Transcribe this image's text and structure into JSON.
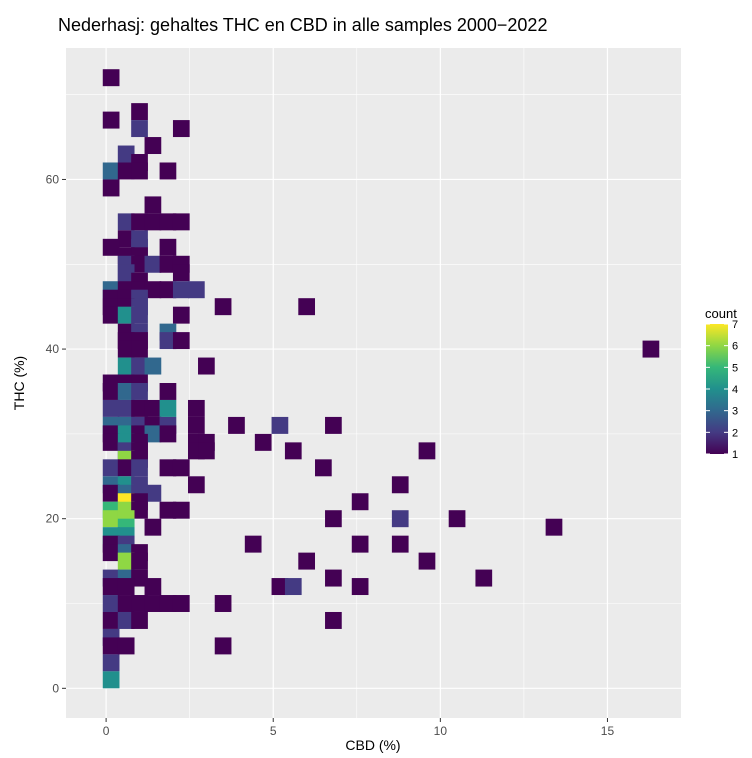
{
  "chart_data": {
    "type": "heatmap",
    "title": "Nederhasj: gehaltes THC en CBD in alle samples 2000−2022",
    "xlabel": "CBD (%)",
    "ylabel": "THC (%)",
    "xlim": [
      -1.2,
      17.2
    ],
    "ylim": [
      -3.5,
      75.5
    ],
    "x_ticks": [
      0,
      5,
      10,
      15
    ],
    "x_tick_labels": [
      "0",
      "5",
      "10",
      "15"
    ],
    "y_ticks": [
      0,
      20,
      40,
      60
    ],
    "y_tick_labels": [
      "0",
      "20",
      "40",
      "60"
    ],
    "bin_width": {
      "x": 0.5,
      "y": 2
    },
    "grid": true,
    "legend": {
      "title": "count",
      "position": "right",
      "min": 1,
      "max": 7,
      "labels": [
        "7",
        "6",
        "5",
        "4",
        "3",
        "2",
        "1"
      ],
      "colors": [
        "#440154",
        "#443a83",
        "#31688e",
        "#21908d",
        "#35b779",
        "#8fd744",
        "#fde725"
      ]
    },
    "bins": [
      [
        0.15,
        72,
        1
      ],
      [
        0.15,
        67,
        1
      ],
      [
        1.0,
        68,
        1
      ],
      [
        1.0,
        66,
        2
      ],
      [
        2.25,
        66,
        1
      ],
      [
        1.4,
        64,
        1
      ],
      [
        0.6,
        63,
        2
      ],
      [
        1.0,
        62,
        1
      ],
      [
        0.15,
        61,
        3
      ],
      [
        0.6,
        61,
        1
      ],
      [
        1.0,
        61,
        1
      ],
      [
        1.85,
        61,
        1
      ],
      [
        0.15,
        59,
        1
      ],
      [
        1.4,
        57,
        1
      ],
      [
        0.6,
        55,
        2
      ],
      [
        1.0,
        55,
        1
      ],
      [
        1.4,
        55,
        1
      ],
      [
        1.85,
        55,
        1
      ],
      [
        2.25,
        55,
        1
      ],
      [
        0.6,
        53,
        1
      ],
      [
        1.0,
        53,
        2
      ],
      [
        0.15,
        52,
        1
      ],
      [
        1.0,
        52,
        2
      ],
      [
        1.85,
        52,
        1
      ],
      [
        0.6,
        51,
        1
      ],
      [
        1.0,
        51,
        1
      ],
      [
        0.6,
        50,
        2
      ],
      [
        1.0,
        50,
        1
      ],
      [
        1.4,
        50,
        2
      ],
      [
        1.85,
        50,
        1
      ],
      [
        2.25,
        50,
        1
      ],
      [
        0.6,
        49,
        2
      ],
      [
        2.25,
        49,
        1
      ],
      [
        0.6,
        48,
        2
      ],
      [
        1.0,
        48,
        1
      ],
      [
        0.15,
        47,
        3
      ],
      [
        0.6,
        47,
        1
      ],
      [
        1.0,
        47,
        1
      ],
      [
        1.4,
        47,
        1
      ],
      [
        1.85,
        47,
        1
      ],
      [
        2.25,
        47,
        2
      ],
      [
        2.7,
        47,
        2
      ],
      [
        0.15,
        46,
        1
      ],
      [
        0.6,
        46,
        1
      ],
      [
        1.0,
        46,
        2
      ],
      [
        0.15,
        45,
        1
      ],
      [
        0.6,
        45,
        1
      ],
      [
        1.0,
        45,
        2
      ],
      [
        3.5,
        45,
        1
      ],
      [
        6.0,
        45,
        1
      ],
      [
        0.15,
        44,
        1
      ],
      [
        0.6,
        44,
        4
      ],
      [
        1.0,
        44,
        2
      ],
      [
        2.25,
        44,
        1
      ],
      [
        0.6,
        42,
        1
      ],
      [
        1.0,
        42,
        2
      ],
      [
        1.85,
        42,
        3
      ],
      [
        0.6,
        41,
        1
      ],
      [
        1.0,
        41,
        1
      ],
      [
        1.85,
        41,
        2
      ],
      [
        2.25,
        41,
        1
      ],
      [
        0.6,
        40,
        1
      ],
      [
        1.0,
        40,
        1
      ],
      [
        16.3,
        40,
        1
      ],
      [
        0.6,
        38,
        4
      ],
      [
        1.0,
        38,
        2
      ],
      [
        1.4,
        38,
        3
      ],
      [
        3.0,
        38,
        1
      ],
      [
        0.15,
        36,
        1
      ],
      [
        0.6,
        36,
        1
      ],
      [
        1.0,
        36,
        1
      ],
      [
        0.15,
        35,
        1
      ],
      [
        0.6,
        35,
        3
      ],
      [
        1.0,
        35,
        2
      ],
      [
        1.85,
        35,
        1
      ],
      [
        0.15,
        33,
        2
      ],
      [
        0.6,
        33,
        2
      ],
      [
        1.0,
        33,
        1
      ],
      [
        1.4,
        33,
        1
      ],
      [
        1.85,
        33,
        4
      ],
      [
        2.7,
        33,
        1
      ],
      [
        0.15,
        31,
        3
      ],
      [
        0.6,
        31,
        3
      ],
      [
        1.0,
        31,
        2
      ],
      [
        1.4,
        31,
        1
      ],
      [
        1.85,
        31,
        2
      ],
      [
        2.7,
        31,
        1
      ],
      [
        3.9,
        31,
        1
      ],
      [
        5.2,
        31,
        2
      ],
      [
        6.8,
        31,
        1
      ],
      [
        0.15,
        30,
        1
      ],
      [
        0.6,
        30,
        4
      ],
      [
        1.0,
        30,
        1
      ],
      [
        1.4,
        30,
        3
      ],
      [
        1.85,
        30,
        1
      ],
      [
        0.15,
        29,
        1
      ],
      [
        0.6,
        29,
        4
      ],
      [
        1.0,
        29,
        1
      ],
      [
        2.7,
        29,
        1
      ],
      [
        3.0,
        29,
        1
      ],
      [
        4.7,
        29,
        1
      ],
      [
        0.6,
        28,
        2
      ],
      [
        1.0,
        28,
        1
      ],
      [
        2.7,
        28,
        1
      ],
      [
        3.0,
        28,
        1
      ],
      [
        5.6,
        28,
        1
      ],
      [
        9.6,
        28,
        1
      ],
      [
        0.6,
        27,
        6
      ],
      [
        1.0,
        27,
        1
      ],
      [
        0.15,
        26,
        2
      ],
      [
        0.6,
        26,
        1
      ],
      [
        1.0,
        26,
        2
      ],
      [
        1.85,
        26,
        1
      ],
      [
        2.25,
        26,
        1
      ],
      [
        6.5,
        26,
        1
      ],
      [
        0.15,
        24,
        3
      ],
      [
        0.6,
        24,
        4
      ],
      [
        1.0,
        24,
        2
      ],
      [
        2.7,
        24,
        1
      ],
      [
        8.8,
        24,
        1
      ],
      [
        0.15,
        23,
        1
      ],
      [
        0.6,
        23,
        3
      ],
      [
        1.0,
        23,
        2
      ],
      [
        1.4,
        23,
        2
      ],
      [
        0.6,
        22,
        7
      ],
      [
        1.0,
        22,
        1
      ],
      [
        7.6,
        22,
        1
      ],
      [
        0.15,
        21,
        5
      ],
      [
        0.6,
        21,
        6
      ],
      [
        1.0,
        21,
        1
      ],
      [
        1.85,
        21,
        1
      ],
      [
        2.25,
        21,
        1
      ],
      [
        0.15,
        20,
        6
      ],
      [
        0.6,
        20,
        6
      ],
      [
        6.8,
        20,
        1
      ],
      [
        8.8,
        20,
        2
      ],
      [
        10.5,
        20,
        1
      ],
      [
        0.6,
        19,
        5
      ],
      [
        1.4,
        19,
        1
      ],
      [
        13.4,
        19,
        1
      ],
      [
        0.15,
        18,
        4
      ],
      [
        0.6,
        18,
        4
      ],
      [
        0.15,
        17,
        1
      ],
      [
        0.6,
        17,
        2
      ],
      [
        4.4,
        17,
        1
      ],
      [
        7.6,
        17,
        1
      ],
      [
        8.8,
        17,
        1
      ],
      [
        0.15,
        16,
        1
      ],
      [
        0.6,
        16,
        3
      ],
      [
        1.0,
        16,
        1
      ],
      [
        0.6,
        15,
        6
      ],
      [
        1.0,
        15,
        1
      ],
      [
        6.0,
        15,
        1
      ],
      [
        9.6,
        15,
        1
      ],
      [
        0.15,
        13,
        2
      ],
      [
        0.6,
        13,
        3
      ],
      [
        1.0,
        13,
        1
      ],
      [
        6.8,
        13,
        1
      ],
      [
        11.3,
        13,
        1
      ],
      [
        0.15,
        12,
        1
      ],
      [
        0.6,
        12,
        1
      ],
      [
        1.4,
        12,
        1
      ],
      [
        5.2,
        12,
        1
      ],
      [
        5.6,
        12,
        2
      ],
      [
        7.6,
        12,
        1
      ],
      [
        0.15,
        10,
        2
      ],
      [
        0.6,
        10,
        1
      ],
      [
        1.0,
        10,
        1
      ],
      [
        1.4,
        10,
        1
      ],
      [
        1.85,
        10,
        1
      ],
      [
        2.25,
        10,
        1
      ],
      [
        3.5,
        10,
        1
      ],
      [
        0.15,
        8,
        1
      ],
      [
        0.6,
        8,
        2
      ],
      [
        1.0,
        8,
        1
      ],
      [
        6.8,
        8,
        1
      ],
      [
        0.15,
        6,
        2
      ],
      [
        0.15,
        5,
        1
      ],
      [
        0.6,
        5,
        1
      ],
      [
        3.5,
        5,
        1
      ],
      [
        0.15,
        3,
        2
      ],
      [
        0.15,
        1,
        4
      ]
    ]
  }
}
